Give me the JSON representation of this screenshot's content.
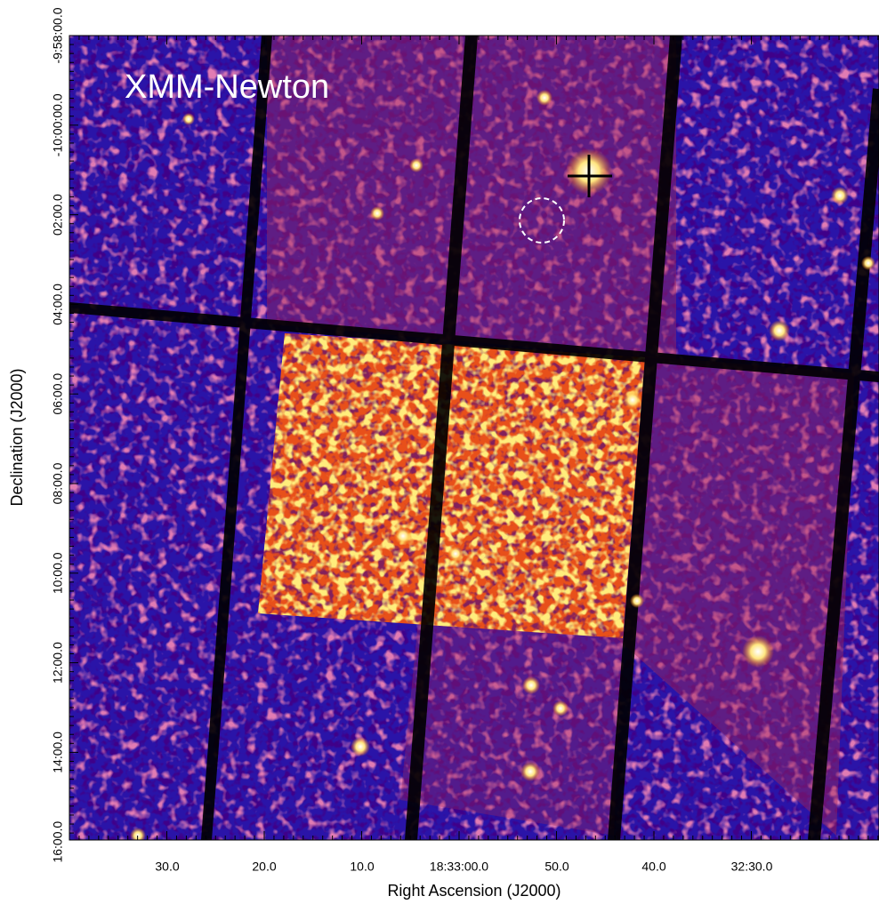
{
  "image": {
    "label": "XMM-Newton"
  },
  "axes": {
    "x_label": "Right Ascension (J2000)",
    "y_label": "Declination (J2000)",
    "x_ticks": [
      "30.0",
      "20.0",
      "10.0",
      "18:33:00.0",
      "50.0",
      "40.0",
      "32:30.0"
    ],
    "y_ticks": [
      "-9:58:00.0",
      "-10:00:00.0",
      "02:00.0",
      "04:00.0",
      "06:00.0",
      "08:00.0",
      "10:00.0",
      "12:00.0",
      "14:00.0",
      "16:00.0"
    ]
  }
}
